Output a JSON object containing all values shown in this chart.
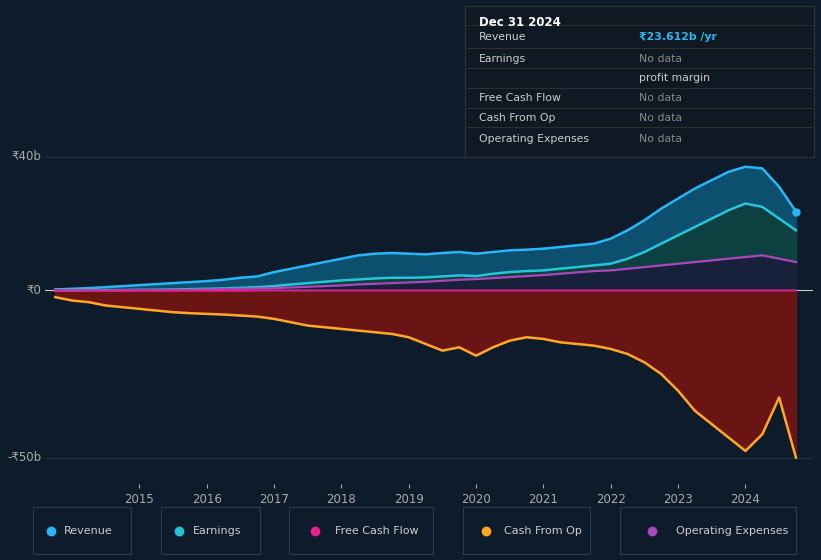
{
  "background_color": "#0d1b2a",
  "plot_bg_color": "#0d1b2a",
  "grid_color": "#253d57",
  "text_color": "#aaaaaa",
  "ylabel_40": "₹40b",
  "ylabel_0": "₹0",
  "ylabel_neg50": "-₹50b",
  "years": [
    2013.75,
    2014.0,
    2014.25,
    2014.5,
    2014.75,
    2015.0,
    2015.25,
    2015.5,
    2015.75,
    2016.0,
    2016.25,
    2016.5,
    2016.75,
    2017.0,
    2017.25,
    2017.5,
    2017.75,
    2018.0,
    2018.25,
    2018.5,
    2018.75,
    2019.0,
    2019.25,
    2019.5,
    2019.75,
    2020.0,
    2020.25,
    2020.5,
    2020.75,
    2021.0,
    2021.25,
    2021.5,
    2021.75,
    2022.0,
    2022.25,
    2022.5,
    2022.75,
    2023.0,
    2023.25,
    2023.5,
    2023.75,
    2024.0,
    2024.25,
    2024.5,
    2024.75
  ],
  "revenue": [
    0.3,
    0.5,
    0.7,
    1.0,
    1.3,
    1.6,
    1.9,
    2.2,
    2.5,
    2.8,
    3.2,
    3.8,
    4.2,
    5.5,
    6.5,
    7.5,
    8.5,
    9.5,
    10.5,
    11.0,
    11.2,
    11.0,
    10.8,
    11.2,
    11.5,
    11.0,
    11.5,
    12.0,
    12.2,
    12.5,
    13.0,
    13.5,
    14.0,
    15.5,
    18.0,
    21.0,
    24.5,
    27.5,
    30.5,
    33.0,
    35.5,
    37.0,
    36.5,
    31.0,
    23.6
  ],
  "earnings": [
    0.0,
    0.0,
    0.1,
    0.1,
    0.1,
    0.2,
    0.2,
    0.3,
    0.4,
    0.5,
    0.6,
    0.8,
    1.0,
    1.3,
    1.8,
    2.2,
    2.6,
    3.0,
    3.3,
    3.6,
    3.8,
    3.8,
    3.9,
    4.2,
    4.5,
    4.3,
    5.0,
    5.5,
    5.8,
    6.0,
    6.5,
    7.0,
    7.5,
    8.0,
    9.5,
    11.5,
    14.0,
    16.5,
    19.0,
    21.5,
    24.0,
    26.0,
    25.0,
    21.5,
    18.0
  ],
  "operating_expenses": [
    0.0,
    0.0,
    0.0,
    0.0,
    0.1,
    0.1,
    0.1,
    0.2,
    0.2,
    0.3,
    0.4,
    0.5,
    0.6,
    0.7,
    0.9,
    1.1,
    1.3,
    1.5,
    1.8,
    2.0,
    2.2,
    2.4,
    2.6,
    2.9,
    3.2,
    3.4,
    3.7,
    4.0,
    4.3,
    4.6,
    5.0,
    5.4,
    5.8,
    6.0,
    6.5,
    7.0,
    7.5,
    8.0,
    8.5,
    9.0,
    9.5,
    10.0,
    10.5,
    9.5,
    8.5
  ],
  "free_cash_flow": [
    0.0,
    0.0,
    0.0,
    -0.1,
    -0.1,
    -0.1,
    -0.1,
    -0.1,
    -0.1,
    -0.1,
    -0.1,
    -0.1,
    0.0,
    0.0,
    0.0,
    0.0,
    0.0,
    0.0,
    0.0,
    0.0,
    0.0,
    0.0,
    0.0,
    0.0,
    0.0,
    0.0,
    0.0,
    0.0,
    0.0,
    0.0,
    0.0,
    0.0,
    0.0,
    0.0,
    0.0,
    0.0,
    0.0,
    0.0,
    0.0,
    0.0,
    0.0,
    0.0,
    0.0,
    0.0,
    0.0
  ],
  "cash_from_op": [
    -2.0,
    -3.0,
    -3.5,
    -4.5,
    -5.0,
    -5.5,
    -6.0,
    -6.5,
    -6.8,
    -7.0,
    -7.2,
    -7.5,
    -7.8,
    -8.5,
    -9.5,
    -10.5,
    -11.0,
    -11.5,
    -12.0,
    -12.5,
    -13.0,
    -14.0,
    -16.0,
    -18.0,
    -17.0,
    -19.5,
    -17.0,
    -15.0,
    -14.0,
    -14.5,
    -15.5,
    -16.0,
    -16.5,
    -17.5,
    -19.0,
    -21.5,
    -25.0,
    -30.0,
    -36.0,
    -40.0,
    -44.0,
    -48.0,
    -43.0,
    -32.0,
    -50.0
  ],
  "revenue_color": "#29b6f6",
  "earnings_color": "#26c6da",
  "operating_expenses_color": "#ab47bc",
  "free_cash_flow_color": "#e91e8c",
  "cash_from_op_color": "#ffa726",
  "revenue_fill_color": "#0d4f6e",
  "earnings_fill_color": "#0d4040",
  "operating_fill_color": "#1a1a3a",
  "cash_fill_color": "#6b1414",
  "legend_bg": "#111827",
  "legend_text": "#cccccc",
  "x_ticks": [
    2015,
    2016,
    2017,
    2018,
    2019,
    2020,
    2021,
    2022,
    2023,
    2024
  ],
  "xlim": [
    2013.6,
    2025.0
  ],
  "ylim": [
    -58,
    45
  ],
  "legend_items": [
    {
      "label": "Revenue",
      "color": "#29b6f6"
    },
    {
      "label": "Earnings",
      "color": "#26c6da"
    },
    {
      "label": "Free Cash Flow",
      "color": "#e91e8c"
    },
    {
      "label": "Cash From Op",
      "color": "#ffa726"
    },
    {
      "label": "Operating Expenses",
      "color": "#ab47bc"
    }
  ],
  "info_box": {
    "title": "Dec 31 2024",
    "rows": [
      {
        "label": "Revenue",
        "value": "₹23.612b /yr",
        "value_color": "#29b6f6"
      },
      {
        "label": "Earnings",
        "value": "No data",
        "value_color": "#888888"
      },
      {
        "label": "",
        "value": "profit margin",
        "value_color": "#cccccc"
      },
      {
        "label": "Free Cash Flow",
        "value": "No data",
        "value_color": "#888888"
      },
      {
        "label": "Cash From Op",
        "value": "No data",
        "value_color": "#888888"
      },
      {
        "label": "Operating Expenses",
        "value": "No data",
        "value_color": "#888888"
      }
    ]
  }
}
